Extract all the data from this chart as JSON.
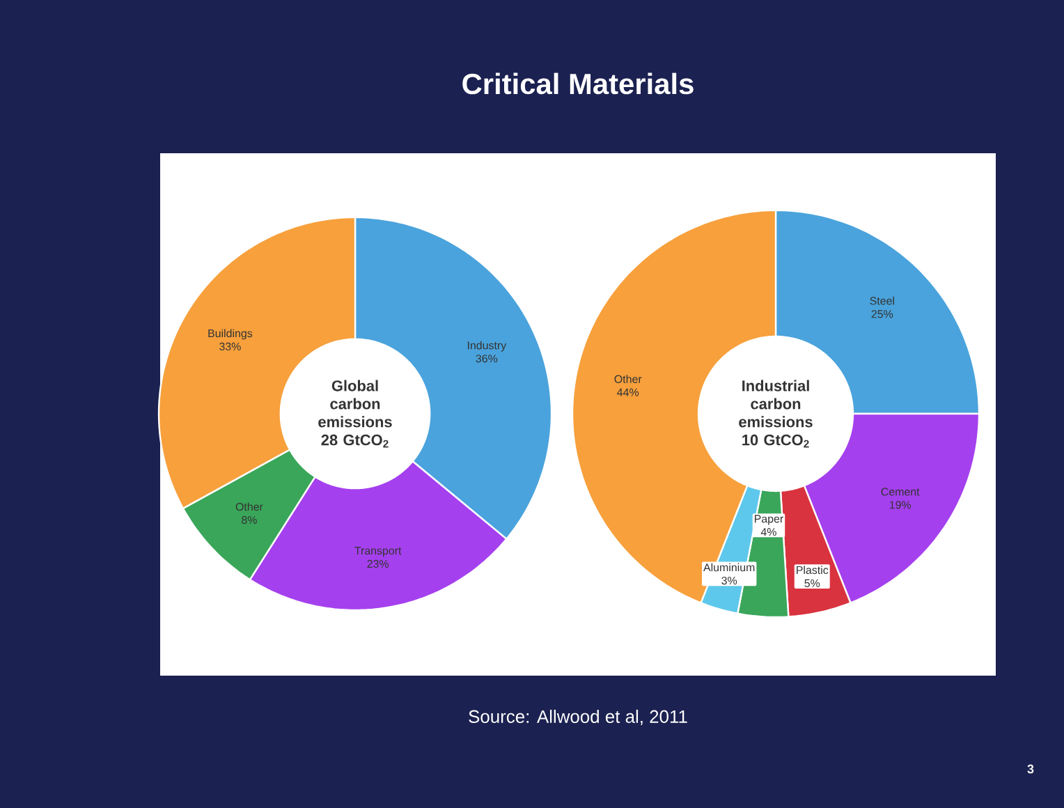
{
  "chart_data": [
    {
      "type": "donut",
      "title": "Global carbon emissions 28 GtCO$_{2}$",
      "categories": [
        "Industry",
        "Transport",
        "Other",
        "Buildings"
      ],
      "values": [
        36,
        23,
        8,
        33
      ],
      "value_labels": [
        "36%",
        "23%",
        "8%",
        "33%"
      ],
      "colors": [
        "#4aa3dc",
        "#a540ee",
        "#3aa65a",
        "#f7a03c"
      ],
      "annotations": [
        "Critical Materials",
        "Source: Allwood et al, 2011",
        "3"
      ]
    },
    {
      "type": "donut",
      "title": "Industrial carbon emissions 10 GtCO$_{2}$",
      "categories": [
        "Steel",
        "Cement",
        "Plastic",
        "Paper",
        "Aluminium",
        "Other"
      ],
      "values": [
        25,
        19,
        5,
        4,
        3,
        44
      ],
      "value_labels": [
        "25%",
        "19%",
        "5%",
        "4%",
        "3%",
        "44%"
      ],
      "colors": [
        "#4aa3dc",
        "#a540ee",
        "#d9333f",
        "#3aa65a",
        "#5ec8ec",
        "#f7a03c"
      ]
    }
  ]
}
